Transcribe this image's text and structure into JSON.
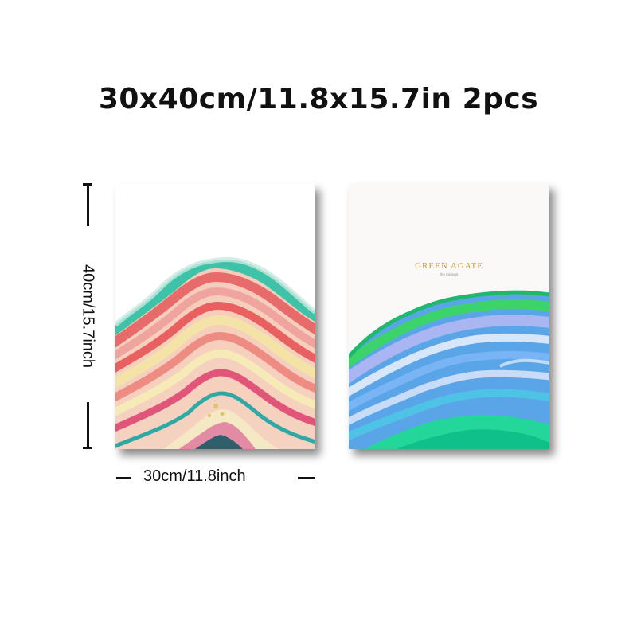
{
  "heading": "30x40cm/11.8x15.7in 2pcs",
  "dimensions": {
    "height_label": "40cm/15.7inch",
    "width_label": "30cm/11.8inch"
  },
  "posters": [
    {
      "name": "pink-agate-print"
    },
    {
      "name": "green-agate-print",
      "title": "GREEN AGATE",
      "subtitle": "the mineral"
    }
  ],
  "colors": {
    "gold": "#c9a227",
    "text": "#111111"
  }
}
